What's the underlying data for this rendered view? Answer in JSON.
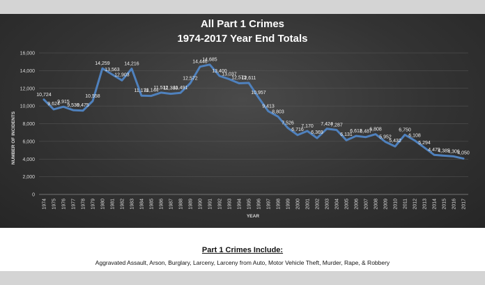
{
  "chart_data": {
    "type": "line",
    "title": "All Part 1 Crimes",
    "subtitle": "1974-2017 Year End Totals",
    "xlabel": "YEAR",
    "ylabel": "NUMBER OF INCIDENTS",
    "ylim": [
      0,
      16000
    ],
    "yticks": [
      "0",
      "2,000",
      "4,000",
      "6,000",
      "8,000",
      "10,000",
      "12,000",
      "14,000",
      "16,000"
    ],
    "grid": true,
    "line_color": "#4f81bd",
    "categories": [
      "1974",
      "1975",
      "1976",
      "1977",
      "1978",
      "1979",
      "1980",
      "1981",
      "1982",
      "1983",
      "1984",
      "1985",
      "1986",
      "1987",
      "1988",
      "1989",
      "1990",
      "1991",
      "1992",
      "1993",
      "1994",
      "1995",
      "1996",
      "1997",
      "1998",
      "1999",
      "2000",
      "2001",
      "2002",
      "2003",
      "2004",
      "2005",
      "2006",
      "2007",
      "2008",
      "2009",
      "2010",
      "2011",
      "2012",
      "2013",
      "2014",
      "2015",
      "2016",
      "2017"
    ],
    "values": [
      10724,
      9624,
      9915,
      9530,
      9475,
      10558,
      14259,
      13563,
      12903,
      14216,
      11178,
      11144,
      11512,
      11380,
      11491,
      12572,
      14446,
      14685,
      13400,
      13037,
      12573,
      12611,
      10957,
      9413,
      8803,
      7526,
      6716,
      7170,
      6369,
      7424,
      7287,
      6131,
      6612,
      6487,
      6808,
      5952,
      5432,
      6750,
      6108,
      5294,
      4479,
      4385,
      4306,
      4050
    ],
    "data_labels": [
      "10,724",
      "9,624",
      "9,915",
      "9,530",
      "9,475",
      "10,558",
      "14,259",
      "13,563",
      "12,903",
      "14,216",
      "11,178",
      "11,144",
      "11,512",
      "11,380",
      "11,491",
      "12,572",
      "14,446",
      "14,685",
      "13,400",
      "13,037",
      "12,573",
      "12,611",
      "10,957",
      "9,413",
      "8,803",
      "7,526",
      "6,716",
      "7,170",
      "6,369",
      "7,424",
      "7,287",
      "6,131",
      "6,612",
      "6,487",
      "6,808",
      "5,952",
      "5,432",
      "6,750",
      "6,108",
      "5,294",
      "4,479",
      "4,385",
      "4,306",
      "4,050"
    ]
  },
  "caption": {
    "title": "Part 1 Crimes Include:",
    "body": "Aggravated Assault, Arson, Burglary, Larceny, Larceny from Auto, Motor Vehicle Theft, Murder, Rape, & Robbery"
  }
}
